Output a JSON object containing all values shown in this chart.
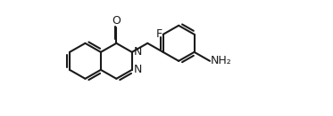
{
  "bg_color": "#ffffff",
  "line_color": "#1a1a1a",
  "lw": 1.5,
  "fs": 9.0,
  "BL": 26,
  "label_O": "O",
  "label_N1": "N",
  "label_N2": "N",
  "label_F": "F",
  "label_NH2": "NH₂"
}
